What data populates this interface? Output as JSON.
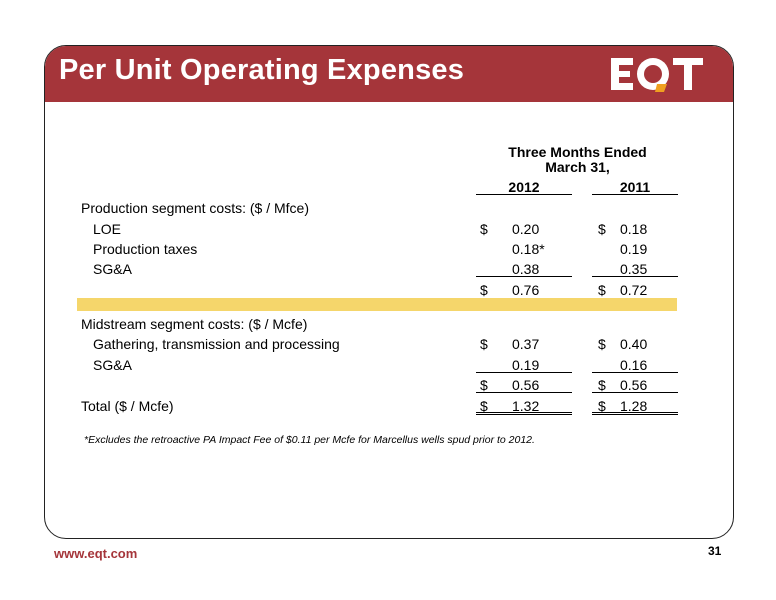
{
  "title": "Per Unit Operating Expenses",
  "logo_text": "EQT",
  "table": {
    "header_line1": "Three Months Ended",
    "header_line2": "March 31,",
    "col_2012": "2012",
    "col_2011": "2011",
    "production_label": "Production segment costs:  ($ / Mfce)",
    "loe_label": "LOE",
    "loe_2012": "0.20",
    "loe_2011": "0.18",
    "prodtax_label": "Production taxes",
    "prodtax_2012": "0.18*",
    "prodtax_2011": "0.19",
    "sga1_label": "SG&A",
    "sga1_2012": "0.38",
    "sga1_2011": "0.35",
    "prod_total_2012": "0.76",
    "prod_total_2011": "0.72",
    "midstream_label": "Midstream segment costs: ($ / Mcfe)",
    "gtp_label": "Gathering, transmission and processing",
    "gtp_2012": "0.37",
    "gtp_2011": "0.40",
    "sga2_label": "SG&A",
    "sga2_2012": "0.19",
    "sga2_2011": "0.16",
    "mid_total_2012": "0.56",
    "mid_total_2011": "0.56",
    "total_label": "Total ($ / Mcfe)",
    "total_2012": "1.32",
    "total_2011": "1.28",
    "dollar": "$"
  },
  "footnote": "*Excludes the retroactive PA Impact Fee of $0.11 per Mcfe for Marcellus wells spud prior to 2012.",
  "footer_url": "www.eqt.com",
  "page_number": "31",
  "colors": {
    "banner": "#a5353a",
    "highlight": "#f5d66b",
    "logo_accent": "#f0a020"
  }
}
